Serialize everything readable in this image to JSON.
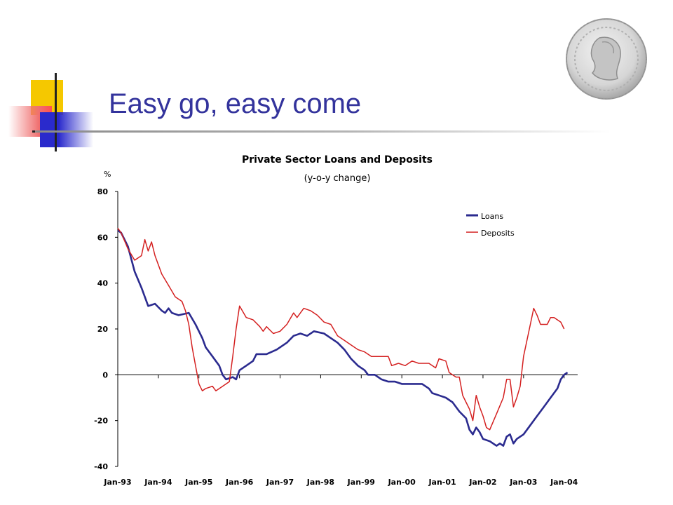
{
  "slide": {
    "title": "Easy go, easy come"
  },
  "decor": {
    "yellow": "#f5c800",
    "red": "#f07070",
    "blue": "#2a2acc",
    "seal_icon": "coin-seal-icon"
  },
  "chart_data": {
    "type": "line",
    "title": "Private Sector Loans and Deposits",
    "subtitle": "(y-o-y change)",
    "ylabel": "%",
    "xlabel": "",
    "ylim": [
      -40,
      80
    ],
    "yticks": [
      80,
      60,
      40,
      20,
      0,
      -20,
      -40
    ],
    "xlim": [
      1993.0,
      2004.333
    ],
    "xticks": [
      "Jan-93",
      "Jan-94",
      "Jan-95",
      "Jan-96",
      "Jan-97",
      "Jan-98",
      "Jan-99",
      "Jan-00",
      "Jan-01",
      "Jan-02",
      "Jan-03",
      "Jan-04"
    ],
    "grid": false,
    "legend_position": "top-right",
    "series": [
      {
        "name": "Loans",
        "color": "#2b2b8f",
        "points": [
          [
            "Jan-93",
            63
          ],
          [
            "Feb-93",
            62
          ],
          [
            "Apr-93",
            56
          ],
          [
            "Jun-93",
            45
          ],
          [
            "Aug-93",
            38
          ],
          [
            "Oct-93",
            30
          ],
          [
            "Dec-93",
            31
          ],
          [
            "Feb-94",
            28
          ],
          [
            "Mar-94",
            27
          ],
          [
            "Apr-94",
            29
          ],
          [
            "May-94",
            27
          ],
          [
            "Jul-94",
            26
          ],
          [
            "Oct-94",
            27
          ],
          [
            "Dec-94",
            22
          ],
          [
            "Feb-95",
            16
          ],
          [
            "Mar-95",
            12
          ],
          [
            "May-95",
            8
          ],
          [
            "Jul-95",
            4
          ],
          [
            "Aug-95",
            0
          ],
          [
            "Sep-95",
            -2
          ],
          [
            "Nov-95",
            -1
          ],
          [
            "Dec-95",
            -2
          ],
          [
            "Jan-96",
            2
          ],
          [
            "Mar-96",
            4
          ],
          [
            "May-96",
            6
          ],
          [
            "Jun-96",
            9
          ],
          [
            "Sep-96",
            9
          ],
          [
            "Dec-96",
            11
          ],
          [
            "Mar-97",
            14
          ],
          [
            "May-97",
            17
          ],
          [
            "Jul-97",
            18
          ],
          [
            "Sep-97",
            17
          ],
          [
            "Nov-97",
            19
          ],
          [
            "Feb-98",
            18
          ],
          [
            "Apr-98",
            16
          ],
          [
            "Jun-98",
            14
          ],
          [
            "Aug-98",
            11
          ],
          [
            "Oct-98",
            7
          ],
          [
            "Dec-98",
            4
          ],
          [
            "Feb-99",
            2
          ],
          [
            "Mar-99",
            0
          ],
          [
            "May-99",
            0
          ],
          [
            "Jul-99",
            -2
          ],
          [
            "Sep-99",
            -3
          ],
          [
            "Nov-99",
            -3
          ],
          [
            "Jan-00",
            -4
          ],
          [
            "Apr-00",
            -4
          ],
          [
            "Jul-00",
            -4
          ],
          [
            "Sep-00",
            -6
          ],
          [
            "Oct-00",
            -8
          ],
          [
            "Dec-00",
            -9
          ],
          [
            "Feb-01",
            -10
          ],
          [
            "Apr-01",
            -12
          ],
          [
            "Jun-01",
            -16
          ],
          [
            "Aug-01",
            -19
          ],
          [
            "Sep-01",
            -24
          ],
          [
            "Oct-01",
            -26
          ],
          [
            "Nov-01",
            -23
          ],
          [
            "Dec-01",
            -25
          ],
          [
            "Jan-02",
            -28
          ],
          [
            "Mar-02",
            -29
          ],
          [
            "May-02",
            -31
          ],
          [
            "Jun-02",
            -30
          ],
          [
            "Jul-02",
            -31
          ],
          [
            "Aug-02",
            -27
          ],
          [
            "Sep-02",
            -26
          ],
          [
            "Oct-02",
            -30
          ],
          [
            "Nov-02",
            -28
          ],
          [
            "Jan-03",
            -26
          ],
          [
            "Mar-03",
            -22
          ],
          [
            "May-03",
            -18
          ],
          [
            "Jul-03",
            -14
          ],
          [
            "Sep-03",
            -10
          ],
          [
            "Nov-03",
            -6
          ],
          [
            "Dec-03",
            -2
          ],
          [
            "Jan-04",
            0
          ],
          [
            "Feb-04",
            1
          ]
        ]
      },
      {
        "name": "Deposits",
        "color": "#d42020",
        "points": [
          [
            "Jan-93",
            64
          ],
          [
            "Feb-93",
            62
          ],
          [
            "Apr-93",
            55
          ],
          [
            "Jun-93",
            50
          ],
          [
            "Aug-93",
            52
          ],
          [
            "Sep-93",
            59
          ],
          [
            "Oct-93",
            54
          ],
          [
            "Nov-93",
            58
          ],
          [
            "Dec-93",
            52
          ],
          [
            "Feb-94",
            44
          ],
          [
            "Apr-94",
            39
          ],
          [
            "Jun-94",
            34
          ],
          [
            "Aug-94",
            32
          ],
          [
            "Sep-94",
            28
          ],
          [
            "Oct-94",
            22
          ],
          [
            "Nov-94",
            12
          ],
          [
            "Dec-94",
            4
          ],
          [
            "Jan-95",
            -4
          ],
          [
            "Feb-95",
            -7
          ],
          [
            "Mar-95",
            -6
          ],
          [
            "May-95",
            -5
          ],
          [
            "Jun-95",
            -7
          ],
          [
            "Aug-95",
            -5
          ],
          [
            "Oct-95",
            -3
          ],
          [
            "Nov-95",
            8
          ],
          [
            "Dec-95",
            20
          ],
          [
            "Jan-96",
            30
          ],
          [
            "Mar-96",
            25
          ],
          [
            "May-96",
            24
          ],
          [
            "Jul-96",
            21
          ],
          [
            "Aug-96",
            19
          ],
          [
            "Sep-96",
            21
          ],
          [
            "Nov-96",
            18
          ],
          [
            "Jan-97",
            19
          ],
          [
            "Mar-97",
            22
          ],
          [
            "May-97",
            27
          ],
          [
            "Jun-97",
            25
          ],
          [
            "Aug-97",
            29
          ],
          [
            "Oct-97",
            28
          ],
          [
            "Dec-97",
            26
          ],
          [
            "Feb-98",
            23
          ],
          [
            "Apr-98",
            22
          ],
          [
            "Jun-98",
            17
          ],
          [
            "Aug-98",
            15
          ],
          [
            "Oct-98",
            13
          ],
          [
            "Dec-98",
            11
          ],
          [
            "Feb-99",
            10
          ],
          [
            "Apr-99",
            8
          ],
          [
            "Jun-99",
            8
          ],
          [
            "Sep-99",
            8
          ],
          [
            "Oct-99",
            4
          ],
          [
            "Dec-99",
            5
          ],
          [
            "Feb-00",
            4
          ],
          [
            "Apr-00",
            6
          ],
          [
            "Jun-00",
            5
          ],
          [
            "Sep-00",
            5
          ],
          [
            "Nov-00",
            3
          ],
          [
            "Dec-00",
            7
          ],
          [
            "Feb-01",
            6
          ],
          [
            "Mar-01",
            1
          ],
          [
            "May-01",
            -1
          ],
          [
            "Jun-01",
            -1
          ],
          [
            "Jul-01",
            -9
          ],
          [
            "Aug-01",
            -12
          ],
          [
            "Sep-01",
            -15
          ],
          [
            "Oct-01",
            -20
          ],
          [
            "Nov-01",
            -9
          ],
          [
            "Dec-01",
            -14
          ],
          [
            "Jan-02",
            -18
          ],
          [
            "Feb-02",
            -23
          ],
          [
            "Mar-02",
            -24
          ],
          [
            "May-02",
            -17
          ],
          [
            "Jul-02",
            -10
          ],
          [
            "Aug-02",
            -2
          ],
          [
            "Sep-02",
            -2
          ],
          [
            "Oct-02",
            -14
          ],
          [
            "Nov-02",
            -10
          ],
          [
            "Dec-02",
            -5
          ],
          [
            "Jan-03",
            8
          ],
          [
            "Mar-03",
            22
          ],
          [
            "Apr-03",
            29
          ],
          [
            "May-03",
            26
          ],
          [
            "Jun-03",
            22
          ],
          [
            "Aug-03",
            22
          ],
          [
            "Sep-03",
            25
          ],
          [
            "Oct-03",
            25
          ],
          [
            "Dec-03",
            23
          ],
          [
            "Jan-04",
            20
          ]
        ]
      }
    ]
  }
}
